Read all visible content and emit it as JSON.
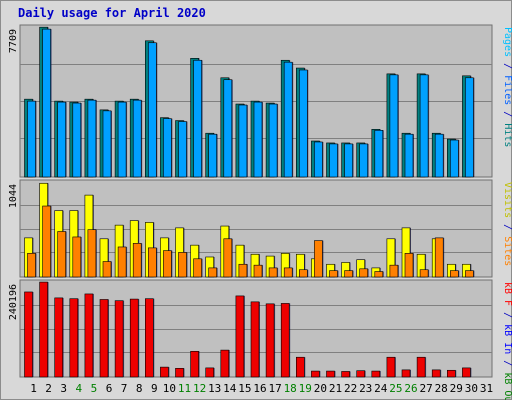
{
  "chart_data": [
    {
      "type": "bar",
      "title": "Daily usage for April 2020",
      "y_max_label": "7709",
      "right_labels": [
        {
          "text": "Pages",
          "color": "#00c0ff"
        },
        {
          "text": " / ",
          "color": "#0000c0"
        },
        {
          "text": "Files",
          "color": "#0060ff"
        },
        {
          "text": " / ",
          "color": "#0000c0"
        },
        {
          "text": "Hits",
          "color": "#008080"
        }
      ],
      "ylim": [
        0,
        7709
      ],
      "series": [
        {
          "key": "hits",
          "color": "#008080",
          "values": [
            4000,
            7700,
            3900,
            3850,
            4000,
            3450,
            3900,
            4000,
            7000,
            3050,
            2900,
            6100,
            2250,
            5100,
            3750,
            3900,
            3800,
            6000,
            5600,
            1850,
            1750,
            1750,
            1750,
            2450,
            5300,
            2250,
            5300,
            2250,
            1950,
            5200
          ]
        },
        {
          "key": "files",
          "color": "#00a0ff",
          "values": [
            3900,
            7600,
            3850,
            3800,
            3950,
            3400,
            3850,
            3950,
            6900,
            3000,
            2850,
            6000,
            2200,
            5000,
            3700,
            3850,
            3750,
            5900,
            5500,
            1800,
            1700,
            1700,
            1700,
            2400,
            5250,
            2200,
            5250,
            2200,
            1900,
            5100
          ]
        },
        {
          "key": "pages",
          "color": "#00c0ff",
          "values": [
            0,
            0,
            0,
            0,
            0,
            0,
            0,
            0,
            0,
            0,
            0,
            0,
            0,
            0,
            0,
            0,
            0,
            0,
            0,
            0,
            0,
            0,
            0,
            0,
            0,
            0,
            0,
            0,
            0,
            0
          ]
        }
      ]
    },
    {
      "type": "bar",
      "y_max_label": "1044",
      "right_labels": [
        {
          "text": "Visits",
          "color": "#c0c000"
        },
        {
          "text": " / ",
          "color": "#0000c0"
        },
        {
          "text": "Sites",
          "color": "#ff8000"
        }
      ],
      "ylim": [
        0,
        1044
      ],
      "series": [
        {
          "key": "visits",
          "color": "#ffff00",
          "values": [
            430,
            1030,
            730,
            730,
            900,
            420,
            570,
            620,
            600,
            430,
            540,
            350,
            220,
            560,
            350,
            250,
            230,
            260,
            250,
            200,
            140,
            160,
            190,
            100,
            420,
            540,
            250,
            420,
            140,
            140
          ]
        },
        {
          "key": "sites",
          "color": "#ff8000",
          "values": [
            260,
            780,
            500,
            440,
            520,
            170,
            330,
            370,
            320,
            290,
            270,
            200,
            100,
            420,
            140,
            130,
            100,
            100,
            80,
            400,
            70,
            70,
            90,
            60,
            130,
            260,
            80,
            430,
            70,
            70
          ]
        }
      ]
    },
    {
      "type": "bar",
      "y_max_label": "240196",
      "right_labels": [
        {
          "text": "kB F",
          "color": "#ff0000"
        },
        {
          "text": " / ",
          "color": "#0000c0"
        },
        {
          "text": "kB In",
          "color": "#0000ff"
        },
        {
          "text": " / ",
          "color": "#0000c0"
        },
        {
          "text": "kB Out",
          "color": "#008000"
        }
      ],
      "ylim": [
        0,
        240196
      ],
      "series": [
        {
          "key": "kbf",
          "color": "#ee0000",
          "values": [
            215000,
            240000,
            200000,
            198000,
            210000,
            196000,
            193000,
            197000,
            198000,
            25000,
            22000,
            65000,
            23000,
            68000,
            205000,
            190000,
            185000,
            186000,
            50000,
            15000,
            15000,
            14000,
            16000,
            15000,
            50000,
            18000,
            50000,
            18000,
            17000,
            23000
          ]
        }
      ]
    }
  ],
  "x_labels": [
    "1",
    "2",
    "3",
    "4",
    "5",
    "6",
    "7",
    "8",
    "9",
    "10",
    "11",
    "12",
    "13",
    "14",
    "15",
    "16",
    "17",
    "18",
    "19",
    "20",
    "21",
    "22",
    "23",
    "24",
    "25",
    "26",
    "27",
    "28",
    "29",
    "30",
    "31"
  ],
  "weekend_days": [
    "4",
    "5",
    "11",
    "12",
    "18",
    "19",
    "25",
    "26"
  ],
  "colors": {
    "weekday_label": "#000000",
    "weekend_label": "#008000",
    "plot_bg": "#c0c0c0",
    "grid": "#808080"
  }
}
